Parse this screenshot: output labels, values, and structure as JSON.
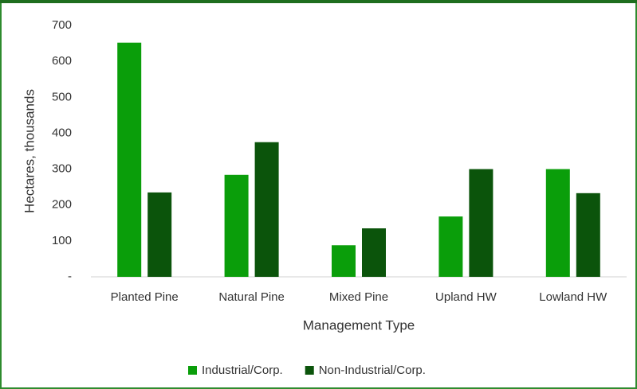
{
  "chart_data": {
    "type": "bar",
    "categories": [
      "Planted Pine",
      "Natural Pine",
      "Mixed Pine",
      "Upland HW",
      "Lowland HW"
    ],
    "series": [
      {
        "name": "Industrial/Corp.",
        "color": "#0a9e0a",
        "values": [
          652,
          284,
          88,
          168,
          300
        ]
      },
      {
        "name": "Non-Industrial/Corp.",
        "color": "#0b540b",
        "values": [
          235,
          375,
          135,
          300,
          233
        ]
      }
    ],
    "ylim": [
      0,
      700
    ],
    "yticks": [
      {
        "value": 0,
        "label": "-"
      },
      100,
      200,
      300,
      400,
      500,
      600,
      700
    ],
    "x_label": "Management Type",
    "y_label": "Hectares, thousands",
    "grid": false,
    "legend": "bottom"
  }
}
